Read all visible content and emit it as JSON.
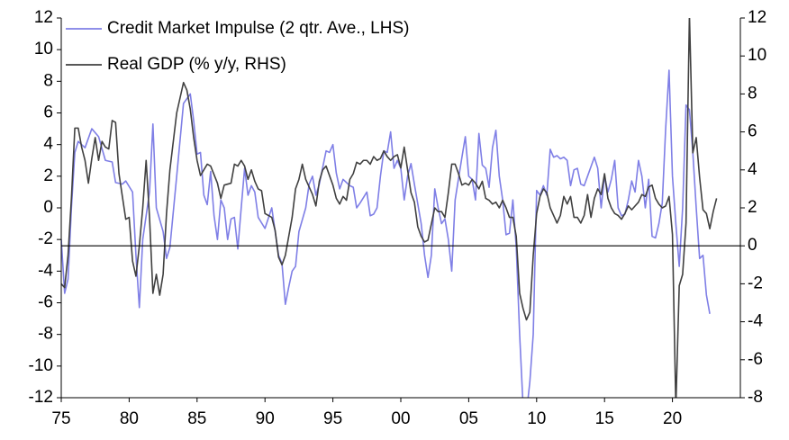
{
  "chart_data": {
    "type": "line",
    "xlim": [
      1975,
      2025
    ],
    "xticks": [
      {
        "value": 1975,
        "label": "75"
      },
      {
        "value": 1980,
        "label": "80"
      },
      {
        "value": 1985,
        "label": "85"
      },
      {
        "value": 1990,
        "label": "90"
      },
      {
        "value": 1995,
        "label": "95"
      },
      {
        "value": 2000,
        "label": "00"
      },
      {
        "value": 2005,
        "label": "05"
      },
      {
        "value": 2010,
        "label": "10"
      },
      {
        "value": 2015,
        "label": "15"
      },
      {
        "value": 2020,
        "label": "20"
      }
    ],
    "ylim": [
      -12,
      12
    ],
    "yticks": [
      -12,
      -10,
      -8,
      -6,
      -4,
      -2,
      0,
      2,
      4,
      6,
      8,
      10,
      12
    ],
    "y2lim": [
      -8,
      12
    ],
    "y2ticks": [
      -8,
      -6,
      -4,
      -2,
      0,
      2,
      4,
      6,
      8,
      10,
      12
    ],
    "legend": "upper left",
    "series": [
      {
        "name": "Credit Market Impulse (2 qtr. Ave., LHS)",
        "color": "#7f7fe6",
        "axis": "y",
        "x": [
          1975,
          1975.25,
          1975.5,
          1975.75,
          1976,
          1976.25,
          1976.75,
          1977.25,
          1977.75,
          1978.25,
          1978.75,
          1979,
          1979.5,
          1979.75,
          1980.25,
          1980.5,
          1980.75,
          1981,
          1981.5,
          1981.75,
          1982,
          1982.5,
          1982.75,
          1983,
          1983.5,
          1984,
          1984.5,
          1984.75,
          1985,
          1985.25,
          1985.5,
          1985.75,
          1986,
          1986.25,
          1986.5,
          1986.75,
          1987,
          1987.25,
          1987.5,
          1987.75,
          1988,
          1988.25,
          1988.5,
          1988.75,
          1989,
          1989.25,
          1989.5,
          1990,
          1990.5,
          1991,
          1991.25,
          1991.5,
          1991.75,
          1992,
          1992.25,
          1992.5,
          1993,
          1993.25,
          1993.5,
          1993.75,
          1994,
          1994.5,
          1994.75,
          1995,
          1995.25,
          1995.5,
          1995.75,
          1996.25,
          1996.5,
          1996.75,
          1997,
          1997.5,
          1997.75,
          1998,
          1998.25,
          1998.5,
          1998.75,
          1999,
          1999.25,
          1999.5,
          1999.75,
          2000,
          2000.25,
          2000.5,
          2000.75,
          2001,
          2001.5,
          2001.75,
          2002,
          2002.25,
          2002.5,
          2002.75,
          2003,
          2003.25,
          2003.5,
          2003.75,
          2004,
          2004.5,
          2004.75,
          2005,
          2005.25,
          2005.5,
          2005.75,
          2006,
          2006.25,
          2006.5,
          2006.75,
          2007,
          2007.25,
          2007.5,
          2007.75,
          2008,
          2008.25,
          2008.5,
          2008.75,
          2009,
          2009.25,
          2009.5,
          2009.75,
          2010,
          2010.25,
          2010.5,
          2010.75,
          2011,
          2011.25,
          2011.5,
          2011.75,
          2012,
          2012.25,
          2012.5,
          2012.75,
          2013,
          2013.25,
          2013.5,
          2013.75,
          2014,
          2014.25,
          2014.5,
          2014.75,
          2015,
          2015.25,
          2015.5,
          2015.75,
          2016,
          2016.25,
          2016.5,
          2016.75,
          2017,
          2017.25,
          2017.5,
          2017.75,
          2018,
          2018.25,
          2018.5,
          2018.75,
          2019,
          2019.25,
          2019.5,
          2019.75,
          2020,
          2020.25,
          2020.5,
          2020.75,
          2021,
          2021.25,
          2021.5,
          2021.75,
          2022,
          2022.25,
          2022.5,
          2022.75
        ],
        "values": [
          -2,
          -5.4,
          -4.5,
          0,
          3.5,
          4.2,
          3.8,
          5,
          4.5,
          3,
          2.9,
          1.6,
          1.5,
          1.7,
          1,
          -3,
          -6.3,
          -2,
          1,
          5.3,
          0,
          -1.5,
          -3.2,
          -2.5,
          2,
          6.6,
          7.2,
          5.5,
          3.4,
          3.5,
          0.8,
          0.2,
          2.3,
          -0.5,
          -2,
          0.5,
          0,
          -2,
          -0.7,
          -0.6,
          -2.6,
          0,
          2.5,
          0.8,
          1.4,
          1,
          -0.6,
          -1.3,
          0,
          -3,
          -3.5,
          -6.1,
          -5,
          -4,
          -3.7,
          -1.5,
          0,
          1.5,
          2,
          0.8,
          1.5,
          3.6,
          3.5,
          4,
          2.2,
          1.2,
          1.8,
          1.4,
          1.3,
          0,
          0.3,
          1,
          -0.5,
          -0.4,
          0,
          2,
          3.6,
          3.5,
          4.8,
          2.5,
          3,
          2.5,
          0.5,
          2,
          2.8,
          1.5,
          -1,
          -3,
          -4.4,
          -3,
          1.2,
          0,
          -1,
          -0.7,
          -2,
          -4,
          0.5,
          3.2,
          4.5,
          2,
          1.8,
          0.5,
          4.7,
          2.7,
          2.5,
          1.3,
          3.8,
          4.9,
          2,
          0.5,
          -1.7,
          -1.6,
          0.5,
          -2.5,
          -8,
          -12.5,
          -13,
          -11,
          -8,
          1.1,
          0.8,
          1.4,
          0.8,
          3.7,
          3.2,
          3.3,
          3.1,
          3.2,
          3,
          1.4,
          2.4,
          2.5,
          1.5,
          1.4,
          2,
          2.6,
          3.2,
          2.5,
          0,
          2,
          1,
          1.8,
          3,
          0,
          -0.5,
          -0.4,
          0.5,
          1.7,
          1,
          3,
          2,
          0,
          1.8,
          -1.8,
          -1.9,
          -1,
          0.3,
          5,
          8.7,
          2,
          -1,
          -3.7,
          0,
          6.5,
          6.2,
          3.5,
          0,
          -3.2,
          -3,
          -5.5,
          -6.7
        ]
      },
      {
        "name": "Real GDP (% y/y, RHS)",
        "color": "#404040",
        "axis": "y2",
        "x": [
          1975,
          1975.25,
          1975.5,
          1975.75,
          1976,
          1976.25,
          1976.5,
          1976.75,
          1977,
          1977.25,
          1977.5,
          1977.75,
          1978,
          1978.25,
          1978.5,
          1978.75,
          1979,
          1979.25,
          1979.5,
          1979.75,
          1980,
          1980.25,
          1980.5,
          1980.75,
          1981,
          1981.25,
          1981.5,
          1981.75,
          1982,
          1982.25,
          1982.5,
          1982.75,
          1983,
          1983.5,
          1984,
          1984.25,
          1984.5,
          1984.75,
          1985,
          1985.25,
          1985.75,
          1986,
          1986.5,
          1986.75,
          1987,
          1987.5,
          1987.75,
          1988,
          1988.25,
          1988.5,
          1988.75,
          1989,
          1989.25,
          1989.5,
          1989.75,
          1990,
          1990.25,
          1990.5,
          1990.75,
          1991,
          1991.25,
          1991.5,
          1991.75,
          1992,
          1992.25,
          1992.5,
          1992.75,
          1993,
          1993.5,
          1993.75,
          1994,
          1994.25,
          1994.5,
          1995,
          1995.25,
          1995.5,
          1995.75,
          1996,
          1996.25,
          1996.5,
          1996.75,
          1997,
          1997.25,
          1997.5,
          1997.75,
          1998,
          1998.25,
          1998.5,
          1998.75,
          1999,
          1999.25,
          1999.5,
          1999.75,
          2000,
          2000.25,
          2000.5,
          2000.75,
          2001,
          2001.25,
          2001.5,
          2001.75,
          2002,
          2002.5,
          2002.75,
          2003,
          2003.25,
          2003.5,
          2003.75,
          2004,
          2004.25,
          2004.5,
          2004.75,
          2005,
          2005.25,
          2005.5,
          2005.75,
          2006,
          2006.25,
          2006.5,
          2006.75,
          2007,
          2007.25,
          2007.5,
          2007.75,
          2008,
          2008.25,
          2008.5,
          2008.75,
          2009,
          2009.25,
          2009.5,
          2009.75,
          2010,
          2010.25,
          2010.5,
          2010.75,
          2011,
          2011.25,
          2011.5,
          2011.75,
          2012,
          2012.25,
          2012.5,
          2012.75,
          2013,
          2013.25,
          2013.5,
          2013.75,
          2014,
          2014.25,
          2014.5,
          2014.75,
          2015,
          2015.25,
          2015.5,
          2015.75,
          2016,
          2016.25,
          2016.5,
          2016.75,
          2017,
          2017.25,
          2017.5,
          2017.75,
          2018,
          2018.25,
          2018.5,
          2018.75,
          2019,
          2019.25,
          2019.5,
          2019.75,
          2020,
          2020.25,
          2020.5,
          2020.75,
          2021,
          2021.25,
          2021.5,
          2021.75,
          2022,
          2022.25,
          2022.5,
          2022.75,
          2023,
          2023.25
        ],
        "values": [
          -2,
          -2.2,
          -0.5,
          2.5,
          6.2,
          6.2,
          5.2,
          4.5,
          3.3,
          4.6,
          5.7,
          4.5,
          5.5,
          5.2,
          5.1,
          6.6,
          6.5,
          3.8,
          2.6,
          1.4,
          1.5,
          -0.8,
          -1.6,
          0,
          2,
          4.5,
          1.5,
          -2.5,
          -1.5,
          -2.6,
          -1.5,
          1.7,
          4,
          7,
          8.6,
          8.2,
          7.2,
          5.7,
          4.5,
          3.7,
          4.3,
          4.2,
          3.3,
          2.5,
          3.2,
          3.3,
          4.3,
          4.2,
          4.5,
          4.2,
          3.5,
          4,
          3.4,
          3,
          2.9,
          1.7,
          1.6,
          1.5,
          0.8,
          -0.6,
          -1,
          -0.5,
          0.5,
          1.5,
          3,
          3.5,
          4.3,
          3.5,
          2.7,
          2.1,
          3.4,
          4,
          4.2,
          3.2,
          2.5,
          2.2,
          2.6,
          2.4,
          3.5,
          3.8,
          4.4,
          4.3,
          4.5,
          4.5,
          4.3,
          4.7,
          4.5,
          4.6,
          5,
          4.7,
          4.5,
          4.7,
          4.8,
          4.1,
          5.2,
          4,
          2.8,
          2.3,
          1,
          0.5,
          0.2,
          0.3,
          2,
          1.8,
          1.8,
          1.5,
          2.8,
          4.3,
          4.3,
          3.8,
          3.2,
          3.3,
          3.2,
          3.5,
          3.3,
          3,
          3.4,
          2.5,
          2.4,
          2.2,
          2.3,
          2,
          2.4,
          2,
          1.5,
          1.5,
          0.5,
          -2.5,
          -3.3,
          -3.9,
          -3.5,
          -0.5,
          1.7,
          2.6,
          3,
          2.8,
          2,
          1.6,
          1.2,
          1.6,
          2.6,
          2.2,
          2.6,
          1.5,
          1.5,
          1.2,
          1.6,
          2.7,
          1.5,
          2.5,
          3,
          2.7,
          3.8,
          2.5,
          2,
          1.7,
          1.6,
          1.4,
          1.7,
          2.1,
          1.9,
          2.1,
          2.3,
          2.7,
          2.6,
          3.1,
          3.2,
          2.5,
          2.2,
          2,
          2.1,
          2.6,
          0.6,
          -8.5,
          -2.1,
          -1.5,
          1.2,
          12.2,
          4.9,
          5.7,
          3.6,
          1.9,
          1.7,
          0.9,
          1.8,
          2.5
        ]
      }
    ]
  }
}
